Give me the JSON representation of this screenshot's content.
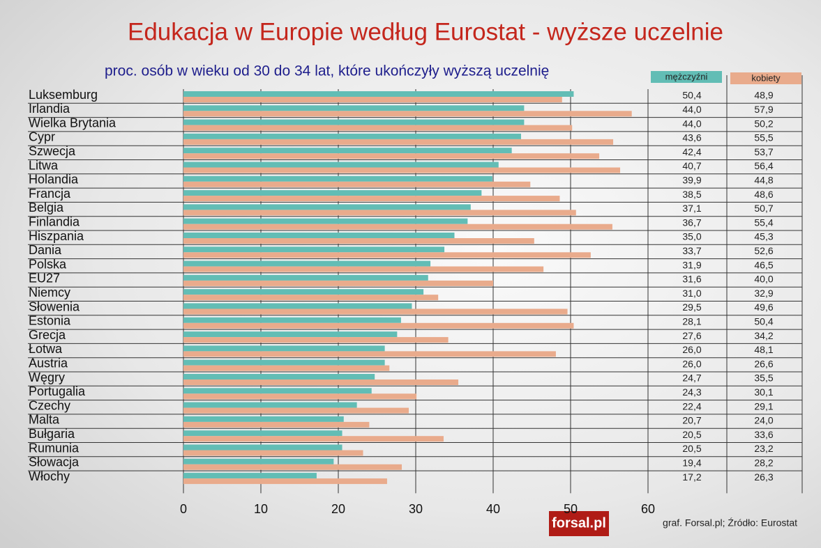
{
  "chart_data": {
    "type": "bar",
    "orientation": "horizontal",
    "title": "Edukacja w Europie według Eurostat - wyższe uczelnie",
    "subtitle": "proc. osób w wieku od 30 do 34 lat, które ukończyły wyższą uczelnię",
    "categories": [
      "Luksemburg",
      "Irlandia",
      "Wielka Brytania",
      "Cypr",
      "Szwecja",
      "Litwa",
      "Holandia",
      "Francja",
      "Belgia",
      "Finlandia",
      "Hiszpania",
      "Dania",
      "Polska",
      "EU27",
      "Niemcy",
      "Słowenia",
      "Estonia",
      "Grecja",
      "Łotwa",
      "Austria",
      "Węgry",
      "Portugalia",
      "Czechy",
      "Malta",
      "Bułgaria",
      "Rumunia",
      "Słowacja",
      "Włochy"
    ],
    "series": [
      {
        "name": "mężczyźni",
        "color": "#62bdb5",
        "values": [
          50.4,
          44.0,
          44.0,
          43.6,
          42.4,
          40.7,
          39.9,
          38.5,
          37.1,
          36.7,
          35.0,
          33.7,
          31.9,
          31.6,
          31.0,
          29.5,
          28.1,
          27.6,
          26.0,
          26.0,
          24.7,
          24.3,
          22.4,
          20.7,
          20.5,
          20.5,
          19.4,
          17.2
        ],
        "value_labels": [
          "50,4",
          "44,0",
          "44,0",
          "43,6",
          "42,4",
          "40,7",
          "39,9",
          "38,5",
          "37,1",
          "36,7",
          "35,0",
          "33,7",
          "31,9",
          "31,6",
          "31,0",
          "29,5",
          "28,1",
          "27,6",
          "26,0",
          "26,0",
          "24,7",
          "24,3",
          "22,4",
          "20,7",
          "20,5",
          "20,5",
          "19,4",
          "17,2"
        ]
      },
      {
        "name": "kobiety",
        "color": "#e9ab8c",
        "values": [
          48.9,
          57.9,
          50.2,
          55.5,
          53.7,
          56.4,
          44.8,
          48.6,
          50.7,
          55.4,
          45.3,
          52.6,
          46.5,
          40.0,
          32.9,
          49.6,
          50.4,
          34.2,
          48.1,
          26.6,
          35.5,
          30.1,
          29.1,
          24.0,
          33.6,
          23.2,
          28.2,
          26.3
        ],
        "value_labels": [
          "48,9",
          "57,9",
          "50,2",
          "55,5",
          "53,7",
          "56,4",
          "44,8",
          "48,6",
          "50,7",
          "55,4",
          "45,3",
          "52,6",
          "46,5",
          "40,0",
          "32,9",
          "49,6",
          "50,4",
          "34,2",
          "48,1",
          "26,6",
          "35,5",
          "30,1",
          "29,1",
          "24,0",
          "33,6",
          "23,2",
          "28,2",
          "26,3"
        ]
      }
    ],
    "xlim": [
      0,
      60
    ],
    "xticks": [
      0,
      10,
      20,
      30,
      40,
      50,
      60
    ],
    "grid": true,
    "source": "graf. Forsal.pl; Źródło: Eurostat",
    "logo": "forsal.pl"
  }
}
